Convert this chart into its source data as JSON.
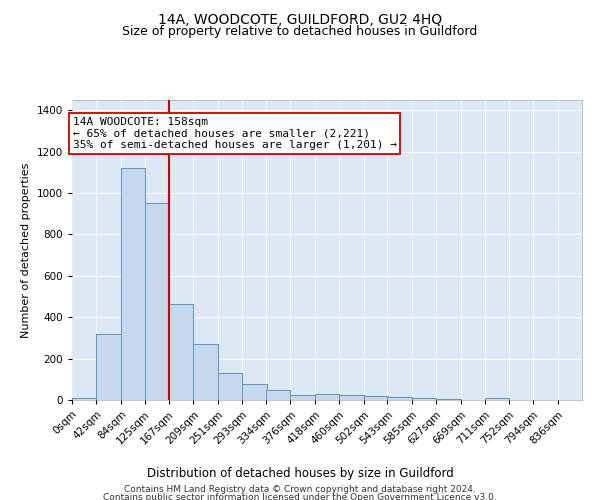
{
  "title": "14A, WOODCOTE, GUILDFORD, GU2 4HQ",
  "subtitle": "Size of property relative to detached houses in Guildford",
  "xlabel": "Distribution of detached houses by size in Guildford",
  "ylabel": "Number of detached properties",
  "bar_color": "#c5d8ed",
  "bar_edge_color": "#5b8db8",
  "background_color": "#dce9f5",
  "grid_color": "#ffffff",
  "vline_color": "#cc0000",
  "annotation_text": "14A WOODCOTE: 158sqm\n← 65% of detached houses are smaller (2,221)\n35% of semi-detached houses are larger (1,201) →",
  "categories": [
    "0sqm",
    "42sqm",
    "84sqm",
    "125sqm",
    "167sqm",
    "209sqm",
    "251sqm",
    "293sqm",
    "334sqm",
    "376sqm",
    "418sqm",
    "460sqm",
    "502sqm",
    "543sqm",
    "585sqm",
    "627sqm",
    "669sqm",
    "711sqm",
    "752sqm",
    "794sqm",
    "836sqm"
  ],
  "bin_edges": [
    0,
    42,
    84,
    125,
    167,
    209,
    251,
    293,
    334,
    376,
    418,
    460,
    502,
    543,
    585,
    627,
    669,
    711,
    752,
    794,
    836
  ],
  "bin_width": 42,
  "values": [
    8,
    320,
    1120,
    950,
    465,
    270,
    130,
    78,
    46,
    24,
    30,
    24,
    17,
    14,
    9,
    5,
    0,
    9,
    0,
    0,
    0
  ],
  "vline_bin": 4,
  "ylim": [
    0,
    1450
  ],
  "yticks": [
    0,
    200,
    400,
    600,
    800,
    1000,
    1200,
    1400
  ],
  "footnote1": "Contains HM Land Registry data © Crown copyright and database right 2024.",
  "footnote2": "Contains public sector information licensed under the Open Government Licence v3.0.",
  "title_fontsize": 10,
  "subtitle_fontsize": 9,
  "xlabel_fontsize": 8.5,
  "ylabel_fontsize": 8,
  "tick_fontsize": 7.5,
  "annotation_fontsize": 8,
  "footnote_fontsize": 6.5
}
